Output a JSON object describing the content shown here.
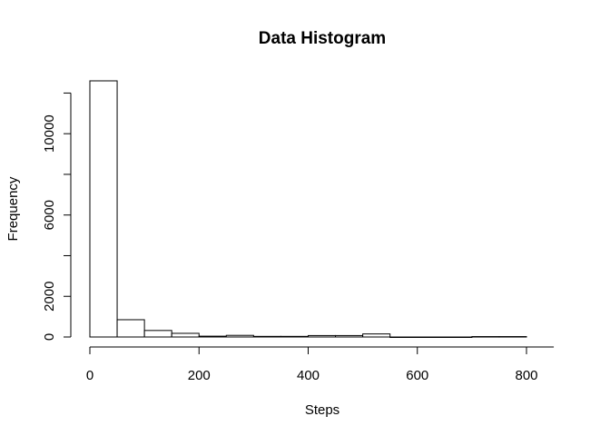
{
  "chart_data": {
    "type": "bar",
    "title": "Data Histogram",
    "xlabel": "Steps",
    "ylabel": "Frequency",
    "bin_width": 50,
    "bins": [
      {
        "x0": 0,
        "x1": 50,
        "count": 12600
      },
      {
        "x0": 50,
        "x1": 100,
        "count": 850
      },
      {
        "x0": 100,
        "x1": 150,
        "count": 320
      },
      {
        "x0": 150,
        "x1": 200,
        "count": 180
      },
      {
        "x0": 200,
        "x1": 250,
        "count": 40
      },
      {
        "x0": 250,
        "x1": 300,
        "count": 80
      },
      {
        "x0": 300,
        "x1": 350,
        "count": 30
      },
      {
        "x0": 350,
        "x1": 400,
        "count": 30
      },
      {
        "x0": 400,
        "x1": 450,
        "count": 70
      },
      {
        "x0": 450,
        "x1": 500,
        "count": 70
      },
      {
        "x0": 500,
        "x1": 550,
        "count": 150
      },
      {
        "x0": 550,
        "x1": 600,
        "count": 0
      },
      {
        "x0": 600,
        "x1": 650,
        "count": 0
      },
      {
        "x0": 650,
        "x1": 700,
        "count": 0
      },
      {
        "x0": 700,
        "x1": 750,
        "count": 20
      },
      {
        "x0": 750,
        "x1": 800,
        "count": 20
      }
    ],
    "xlim": [
      0,
      850
    ],
    "ylim": [
      0,
      12600
    ],
    "x_ticks": [
      0,
      200,
      400,
      600,
      800
    ],
    "y_ticks": [
      0,
      2000,
      6000,
      10000
    ],
    "y_axis_max_tick": 12000,
    "grid": false,
    "legend": "none"
  }
}
